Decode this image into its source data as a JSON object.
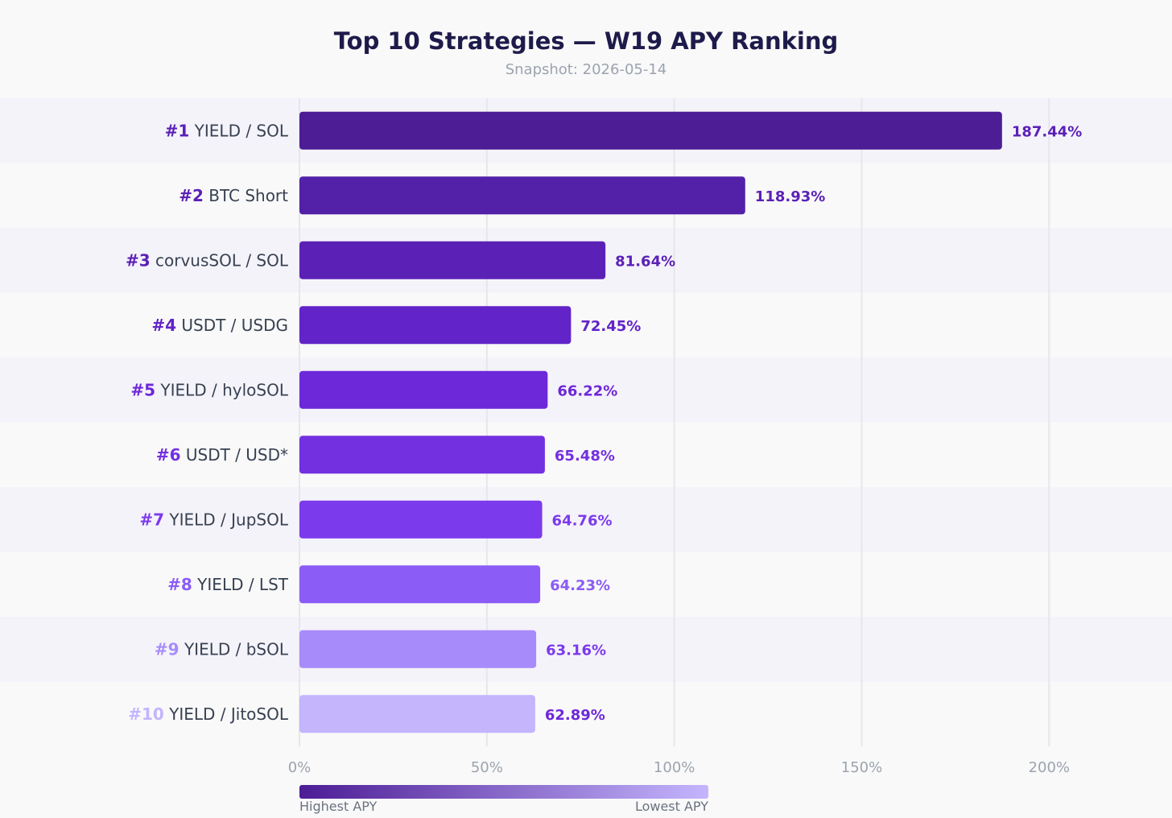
{
  "chart_data": {
    "type": "bar",
    "orientation": "horizontal",
    "title": "Top 10 Strategies — W19 APY Ranking",
    "subtitle": "Snapshot: 2026-05-14",
    "xlabel": "",
    "ylabel": "",
    "xlim": [
      0,
      230
    ],
    "x_ticks": [
      0,
      50,
      100,
      150,
      200
    ],
    "x_tick_labels": [
      "0%",
      "50%",
      "100%",
      "150%",
      "200%"
    ],
    "grid": "vertical",
    "categories": [
      {
        "rank": "#1",
        "name": "YIELD / SOL",
        "value": 187.44,
        "value_label": "187.44%",
        "color": "#4c1d95",
        "rank_color": "#5b21b6",
        "value_color": "#5b21b6"
      },
      {
        "rank": "#2",
        "name": "BTC Short",
        "value": 118.93,
        "value_label": "118.93%",
        "color": "#5321a8",
        "rank_color": "#5b21b6",
        "value_color": "#5b21b6"
      },
      {
        "rank": "#3",
        "name": "corvusSOL / SOL",
        "value": 81.64,
        "value_label": "81.64%",
        "color": "#5b21b6",
        "rank_color": "#5b21b6",
        "value_color": "#5b21b6"
      },
      {
        "rank": "#4",
        "name": "USDT / USDG",
        "value": 72.45,
        "value_label": "72.45%",
        "color": "#6223c8",
        "rank_color": "#6223c8",
        "value_color": "#6223c8"
      },
      {
        "rank": "#5",
        "name": "YIELD / hyloSOL",
        "value": 66.22,
        "value_label": "66.22%",
        "color": "#6d28d9",
        "rank_color": "#6d28d9",
        "value_color": "#6d28d9"
      },
      {
        "rank": "#6",
        "name": "USDT / USD*",
        "value": 65.48,
        "value_label": "65.48%",
        "color": "#7330e0",
        "rank_color": "#7330e0",
        "value_color": "#7330e0"
      },
      {
        "rank": "#7",
        "name": "YIELD / JupSOL",
        "value": 64.76,
        "value_label": "64.76%",
        "color": "#7c3aed",
        "rank_color": "#7c3aed",
        "value_color": "#7c3aed"
      },
      {
        "rank": "#8",
        "name": "YIELD / LST",
        "value": 64.23,
        "value_label": "64.23%",
        "color": "#8b5cf6",
        "rank_color": "#8b5cf6",
        "value_color": "#8b5cf6"
      },
      {
        "rank": "#9",
        "name": "YIELD / bSOL",
        "value": 63.16,
        "value_label": "63.16%",
        "color": "#a78bfa",
        "rank_color": "#a78bfa",
        "value_color": "#7c3aed"
      },
      {
        "rank": "#10",
        "name": "YIELD / JitoSOL",
        "value": 62.89,
        "value_label": "62.89%",
        "color": "#c4b5fd",
        "rank_color": "#c4b5fd",
        "value_color": "#6d28d9"
      }
    ],
    "legend": {
      "type": "gradient",
      "placement": "bottom-left",
      "start_label": "Highest APY",
      "end_label": "Lowest APY",
      "start_color": "#4c1d95",
      "end_color": "#c4b5fd"
    },
    "band_color": "#f5f3fa",
    "grid_color": "#e5e7eb",
    "label_color": "#374151"
  }
}
